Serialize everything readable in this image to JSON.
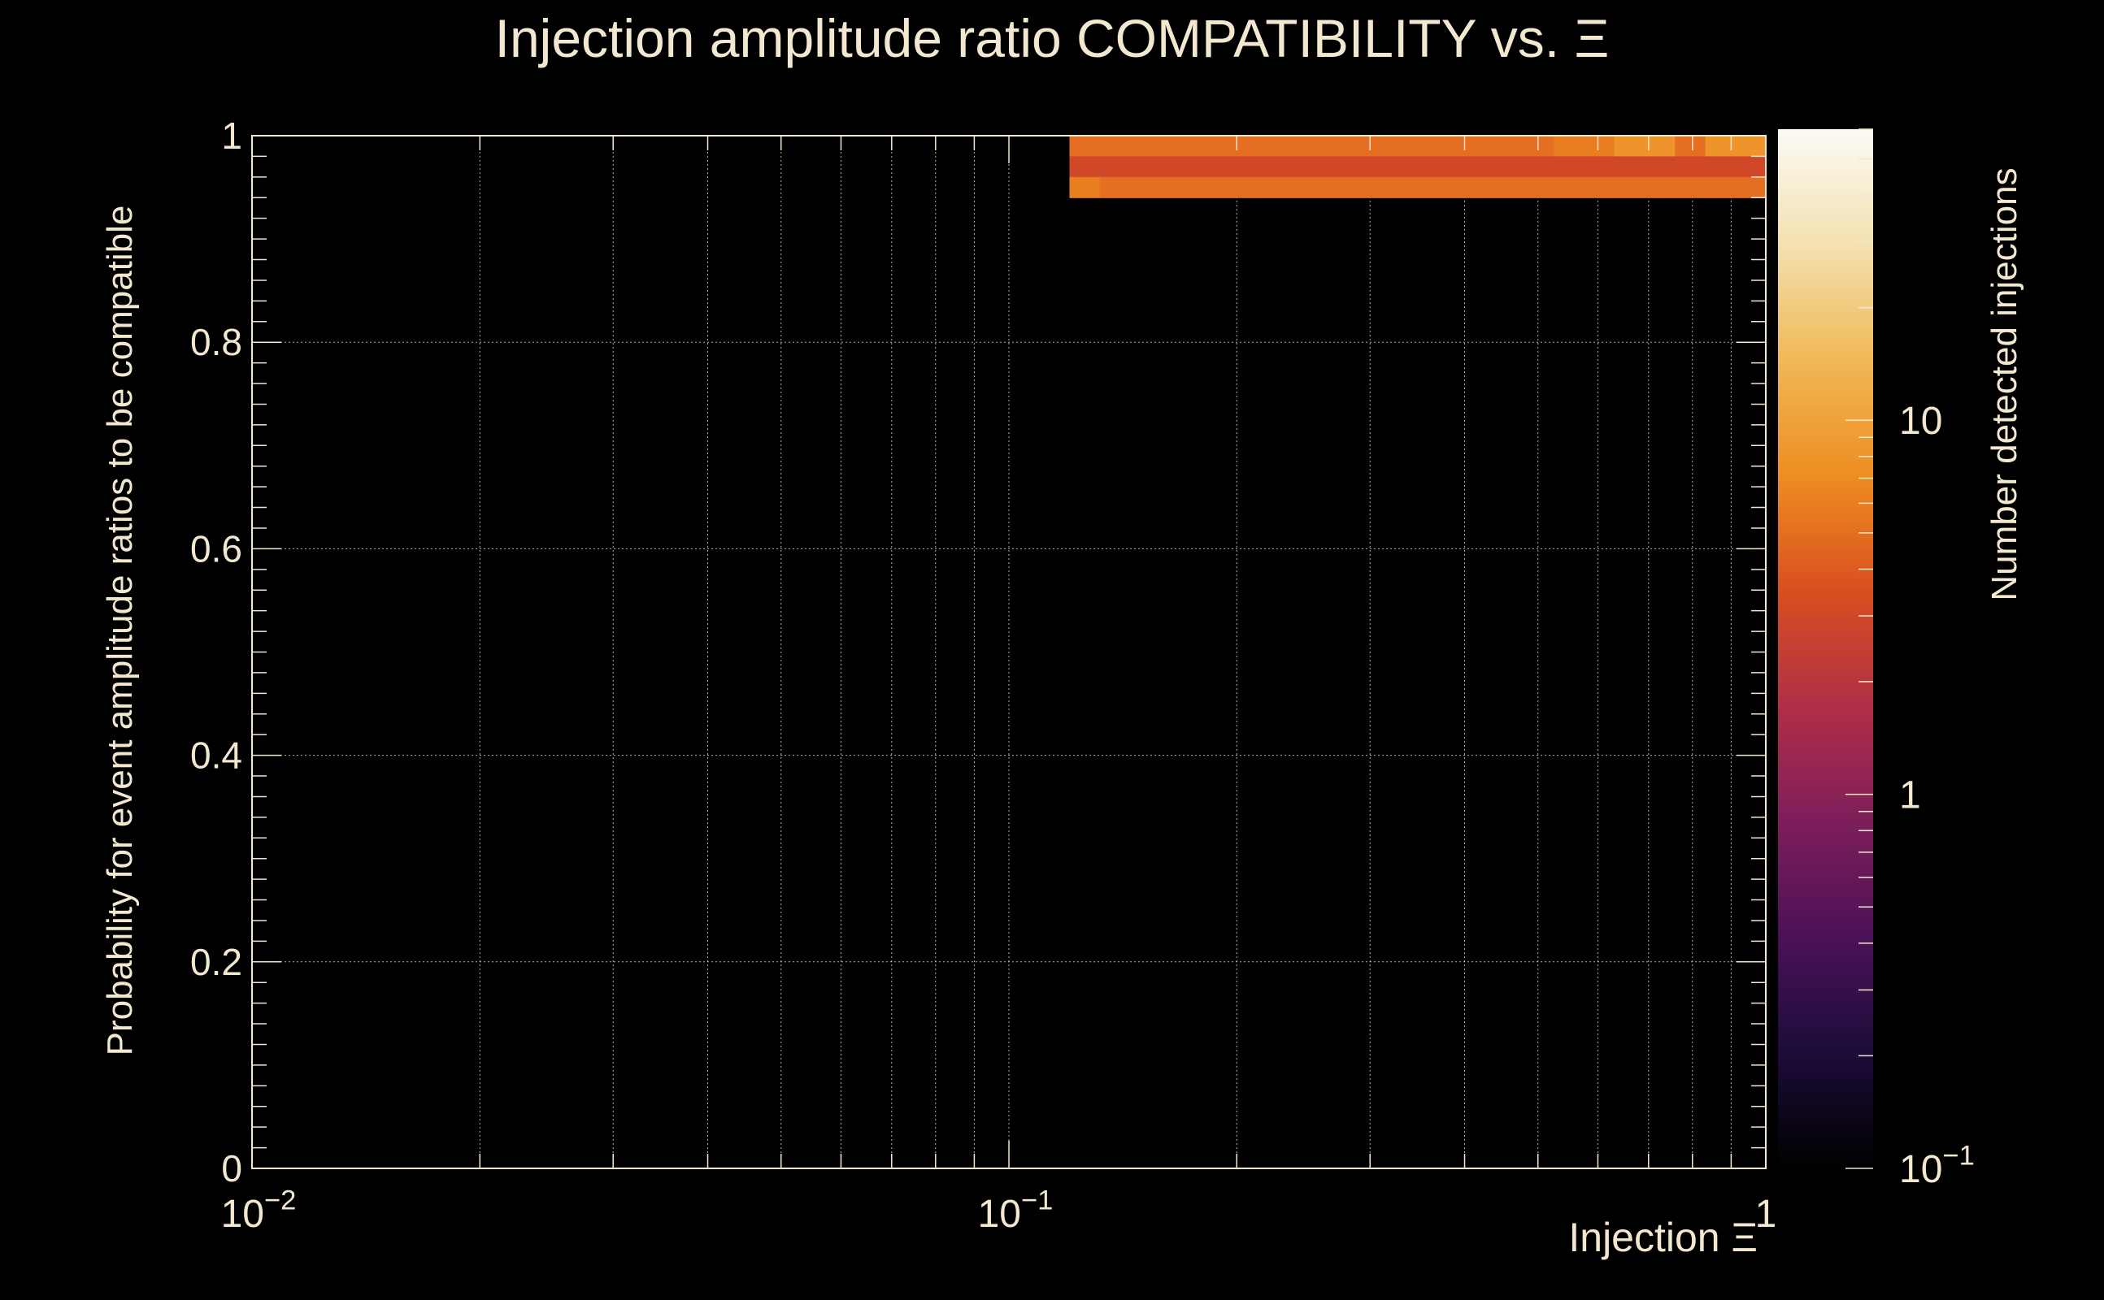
{
  "chart_data": {
    "type": "heatmap",
    "title": "Injection amplitude ratio COMPATIBILITY vs.  Ξ",
    "xlabel": "Injection Ξ",
    "ylabel": "Probability for event amplitude ratios to be compatible",
    "zlabel": "Number detected injections",
    "x_scale": "log",
    "xlim": [
      0.01,
      1
    ],
    "ylim": [
      0,
      1
    ],
    "z_scale": "log",
    "zlim": [
      0.1,
      60
    ],
    "grid": true,
    "x_ticks": [
      {
        "value": 0.01,
        "base": "10",
        "exp": "−2"
      },
      {
        "value": 0.1,
        "base": "10",
        "exp": "−1"
      },
      {
        "value": 1,
        "base": "1",
        "exp": ""
      }
    ],
    "y_ticks": [
      {
        "value": 0,
        "label": "0"
      },
      {
        "value": 0.2,
        "label": "0.2"
      },
      {
        "value": 0.4,
        "label": "0.4"
      },
      {
        "value": 0.6,
        "label": "0.6"
      },
      {
        "value": 0.8,
        "label": "0.8"
      },
      {
        "value": 1,
        "label": "1"
      }
    ],
    "z_ticks": [
      {
        "value": 0.1,
        "base": "10",
        "exp": "−1"
      },
      {
        "value": 1,
        "base": "1",
        "exp": ""
      },
      {
        "value": 10,
        "base": "10",
        "exp": ""
      }
    ],
    "colormap": [
      "#000000",
      "#1c0c3a",
      "#4a1256",
      "#7d1e5b",
      "#b02f47",
      "#d94f1f",
      "#ee8d22",
      "#f0b856",
      "#f3e1b0",
      "#fbfaf4"
    ],
    "x_bins": {
      "n": 50,
      "log_min": -2,
      "log_max": 0
    },
    "y_bins": {
      "n": 50,
      "min": 0,
      "max": 1
    },
    "cells": [
      [
        27,
        49,
        5
      ],
      [
        28,
        49,
        5
      ],
      [
        29,
        49,
        5
      ],
      [
        30,
        49,
        5
      ],
      [
        31,
        49,
        5
      ],
      [
        32,
        49,
        5
      ],
      [
        33,
        49,
        5
      ],
      [
        34,
        49,
        5
      ],
      [
        35,
        49,
        5
      ],
      [
        36,
        49,
        5
      ],
      [
        37,
        49,
        5
      ],
      [
        38,
        49,
        5
      ],
      [
        39,
        49,
        5
      ],
      [
        40,
        49,
        5
      ],
      [
        41,
        49,
        5
      ],
      [
        42,
        49,
        5
      ],
      [
        43,
        49,
        6
      ],
      [
        44,
        49,
        6
      ],
      [
        45,
        49,
        8
      ],
      [
        46,
        49,
        8
      ],
      [
        47,
        49,
        5
      ],
      [
        48,
        49,
        8
      ],
      [
        49,
        49,
        8
      ],
      [
        27,
        48,
        3
      ],
      [
        28,
        48,
        3
      ],
      [
        29,
        48,
        3
      ],
      [
        30,
        48,
        3
      ],
      [
        31,
        48,
        3
      ],
      [
        32,
        48,
        3
      ],
      [
        33,
        48,
        3
      ],
      [
        34,
        48,
        3
      ],
      [
        35,
        48,
        3
      ],
      [
        36,
        48,
        3
      ],
      [
        37,
        48,
        3
      ],
      [
        38,
        48,
        3
      ],
      [
        39,
        48,
        3
      ],
      [
        40,
        48,
        3
      ],
      [
        41,
        48,
        3
      ],
      [
        42,
        48,
        3
      ],
      [
        43,
        48,
        3
      ],
      [
        44,
        48,
        3
      ],
      [
        45,
        48,
        3
      ],
      [
        46,
        48,
        3
      ],
      [
        47,
        48,
        3
      ],
      [
        48,
        48,
        3
      ],
      [
        49,
        48,
        3
      ],
      [
        27,
        47,
        6
      ],
      [
        28,
        47,
        5
      ],
      [
        29,
        47,
        5
      ],
      [
        30,
        47,
        5
      ],
      [
        31,
        47,
        5
      ],
      [
        32,
        47,
        5
      ],
      [
        33,
        47,
        5
      ],
      [
        34,
        47,
        5
      ],
      [
        35,
        47,
        5
      ],
      [
        36,
        47,
        5
      ],
      [
        37,
        47,
        5
      ],
      [
        38,
        47,
        5
      ],
      [
        39,
        47,
        5
      ],
      [
        40,
        47,
        5
      ],
      [
        41,
        47,
        5
      ],
      [
        42,
        47,
        5
      ],
      [
        43,
        47,
        5
      ],
      [
        44,
        47,
        5
      ],
      [
        45,
        47,
        5
      ],
      [
        46,
        47,
        5
      ],
      [
        47,
        47,
        5
      ],
      [
        48,
        47,
        5
      ],
      [
        49,
        47,
        5
      ]
    ]
  }
}
